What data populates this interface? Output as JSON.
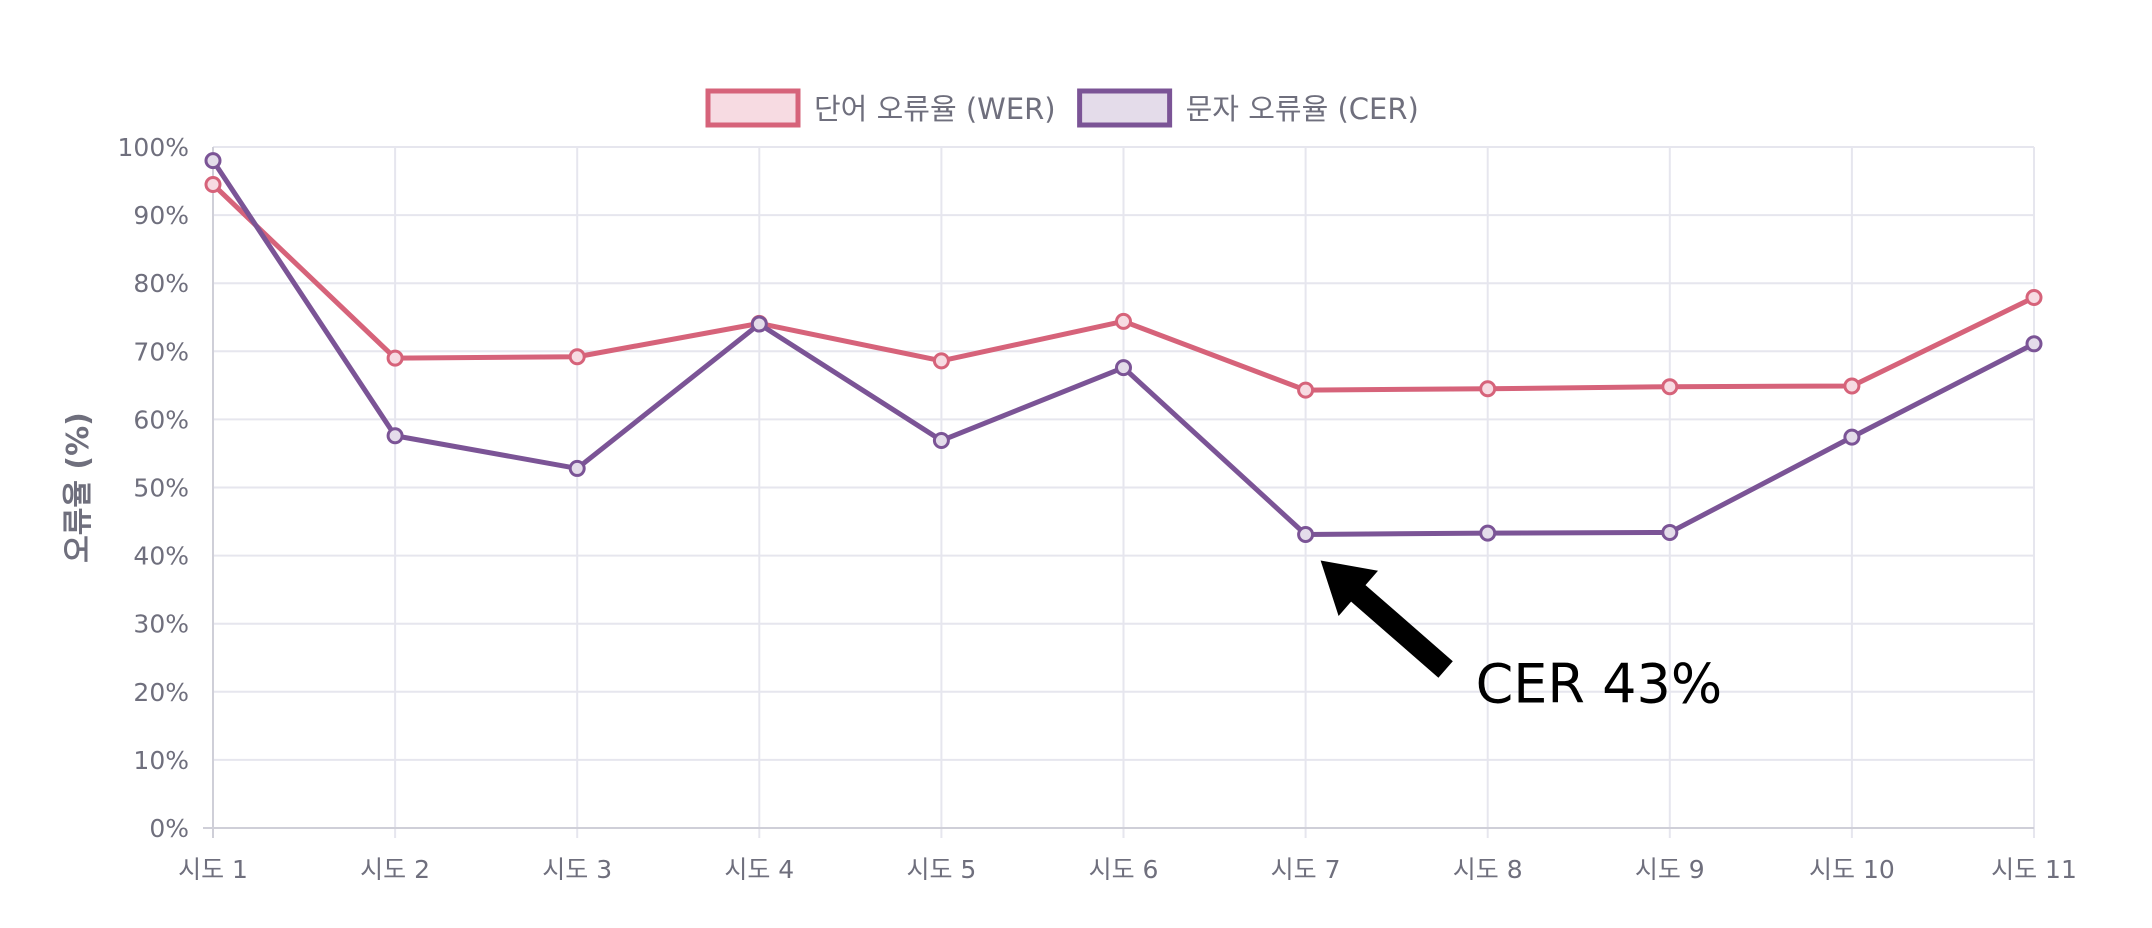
{
  "chart_data": {
    "type": "line",
    "title": "",
    "xlabel": "",
    "ylabel": "오류율 (%)",
    "categories": [
      "시도 1",
      "시도 2",
      "시도 3",
      "시도 4",
      "시도 5",
      "시도 6",
      "시도 7",
      "시도 8",
      "시도 9",
      "시도 10",
      "시도 11"
    ],
    "ylim": [
      0,
      100
    ],
    "yticks": [
      0,
      10,
      20,
      30,
      40,
      50,
      60,
      70,
      80,
      90,
      100
    ],
    "ytick_labels": [
      "0%",
      "10%",
      "20%",
      "30%",
      "40%",
      "50%",
      "60%",
      "70%",
      "80%",
      "90%",
      "100%"
    ],
    "grid": true,
    "legend_position": "top-center",
    "series": [
      {
        "name": "단어 오류율 (WER)",
        "color": "#d6637a",
        "fill": "#f7dbe2",
        "values": [
          94.5,
          69,
          69.2,
          74.1,
          68.6,
          74.4,
          64.3,
          64.5,
          64.8,
          64.9,
          77.9
        ]
      },
      {
        "name": "문자 오류율 (CER)",
        "color": "#7b5496",
        "fill": "#e4dcea",
        "values": [
          98,
          57.6,
          52.8,
          74,
          56.9,
          67.6,
          43.1,
          43.3,
          43.4,
          57.4,
          71.1
        ]
      }
    ],
    "annotation": {
      "text": "CER 43%",
      "series_index": 1,
      "point_index": 6
    }
  }
}
